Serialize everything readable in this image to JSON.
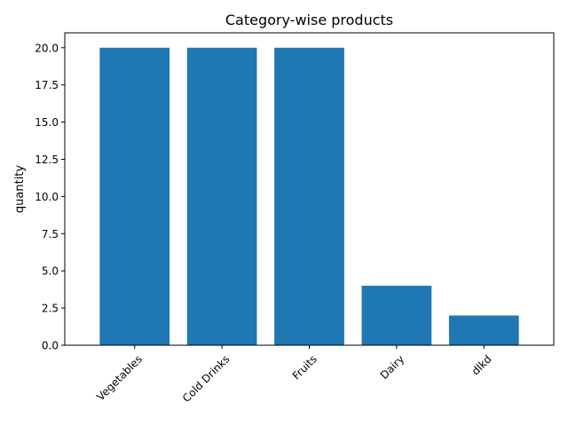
{
  "chart_data": {
    "type": "bar",
    "title": "Category-wise products",
    "xlabel": "",
    "ylabel": "quantity",
    "categories": [
      "Vegetables",
      "Cold Drinks",
      "Fruits",
      "Dairy",
      "dlkd"
    ],
    "values": [
      20,
      20,
      20,
      4,
      2
    ],
    "ylim": [
      0,
      21
    ],
    "yticks": [
      0,
      2.5,
      5,
      7.5,
      10,
      12.5,
      15,
      17.5,
      20
    ],
    "ytick_labels": [
      "0.0",
      "2.5",
      "5.0",
      "7.5",
      "10.0",
      "12.5",
      "15.0",
      "17.5",
      "20.0"
    ],
    "xtick_rotation": 45,
    "grid": false,
    "legend": "none",
    "bar_color": "#1f77b4"
  }
}
